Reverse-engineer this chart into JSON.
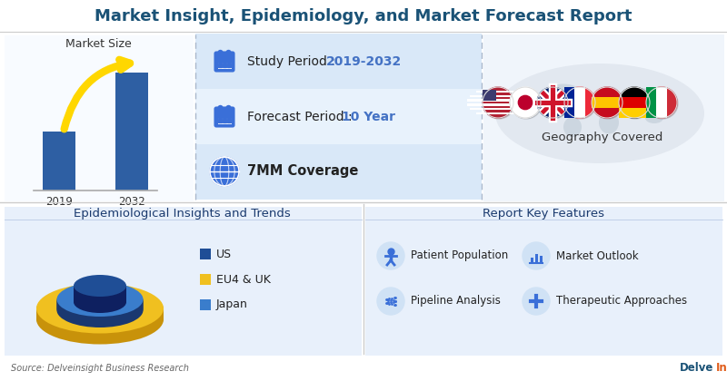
{
  "title": "Market Insight, Epidemiology, and Market Forecast Report",
  "title_color": "#1a5276",
  "title_fontsize": 13,
  "bg_color": "#f5f8fd",
  "top_left_bg": "#f5f8fd",
  "mid_row1_bg": "#dce9f9",
  "mid_row2_bg": "#dce9f9",
  "mid_row3_bg": "#eaf1fb",
  "right_bg": "#f0f4fb",
  "bottom_left_bg": "#e8f0fb",
  "bottom_right_bg": "#e8f0fb",
  "study_period_label": "Study Period : ",
  "study_period_value": "2019-2032",
  "forecast_period_label": "Forecast Period : ",
  "forecast_period_value": "10 Year",
  "coverage_label": "7MM Coverage",
  "geography_label": "Geography Covered",
  "market_size_label": "Market Size",
  "year_start": "2019",
  "year_end": "2032",
  "epi_section_title": "Epidemiological Insights and Trends",
  "report_section_title": "Report Key Features",
  "legend_items": [
    "US",
    "EU4 & UK",
    "Japan"
  ],
  "legend_colors": [
    "#1f4e96",
    "#f0c020",
    "#3a7dcc"
  ],
  "features": [
    [
      "Patient Population",
      "Market Outlook"
    ],
    [
      "Pipeline Analysis",
      "Therapeutic Approaches"
    ]
  ],
  "source_text": "Source: Delveinsight Business Research",
  "highlight_color": "#4472c4",
  "bar_color": "#2e5fa3",
  "arrow_color": "#ffd700",
  "icon_color": "#3a6fd8",
  "label_text_color": "#222222",
  "section_title_color": "#1a3a6e",
  "calendar_color": "#3a6fd8",
  "globe_color": "#3a6fd8"
}
